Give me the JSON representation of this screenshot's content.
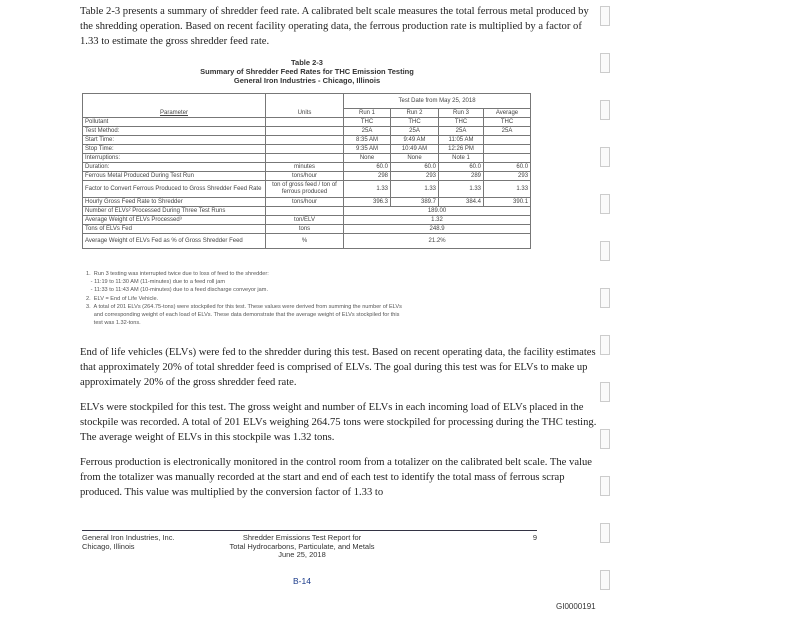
{
  "intro": "Table 2-3 presents a summary of shredder feed rate.  A calibrated belt scale measures the total ferrous metal produced by the shredding operation.  Based on recent facility operating data, the ferrous production rate is multiplied by a factor of 1.33 to estimate the gross shredder feed rate.",
  "caption": {
    "number": "Table 2-3",
    "title": "Summary of Shredder Feed Rates for THC Emission Testing",
    "subtitle": "General Iron Industries - Chicago, Illinois"
  },
  "table": {
    "h_param": "Parameter",
    "h_units": "Units",
    "h_group": "Test Date from May 25, 2018",
    "h_runs": [
      "Run 1",
      "Run 2",
      "Run 3",
      "Average"
    ],
    "rows": [
      {
        "p": "Pollutant",
        "u": "",
        "v": [
          "THC",
          "THC",
          "THC",
          "THC"
        ]
      },
      {
        "p": "Test Method:",
        "u": "",
        "v": [
          "25A",
          "25A",
          "25A",
          "25A"
        ]
      },
      {
        "p": "Start Time:",
        "u": "",
        "v": [
          "8:35 AM",
          "9:49 AM",
          "11:05 AM",
          ""
        ]
      },
      {
        "p": "Stop Time:",
        "u": "",
        "v": [
          "9:35 AM",
          "10:49 AM",
          "12:26 PM",
          ""
        ]
      },
      {
        "p": "Interruptions:",
        "u": "",
        "v": [
          "None",
          "None",
          "Note 1",
          ""
        ]
      },
      {
        "p": "Duration:",
        "u": "minutes",
        "v": [
          "60.0",
          "60.0",
          "60.0",
          "60.0"
        ]
      },
      {
        "p": "Ferrous Metal Produced During Test Run",
        "u": "tons/hour",
        "v": [
          "298",
          "293",
          "289",
          "293"
        ]
      },
      {
        "p": "Factor to Convert Ferrous Produced to Gross Shredder Feed Rate",
        "u": "ton of gross feed / ton of ferrous produced",
        "v": [
          "1.33",
          "1.33",
          "1.33",
          "1.33"
        ]
      },
      {
        "p": "Hourly Gross Feed Rate to Shredder",
        "u": "tons/hour",
        "v": [
          "396.3",
          "389.7",
          "384.4",
          "390.1"
        ]
      }
    ],
    "merged": [
      {
        "p": "Number of ELVs² Processed During Three Test Runs",
        "u": "",
        "v": "189.00"
      },
      {
        "p": "Average Weight of ELVs Processed³",
        "u": "ton/ELV",
        "v": "1.32"
      },
      {
        "p": "Tons of ELVs Fed",
        "u": "tons",
        "v": "248.9"
      },
      {
        "p": "Average Weight of ELVs Fed as % of Gross Shredder Feed",
        "u": "%",
        "v": "21.2%"
      }
    ]
  },
  "notes": [
    "1.  Run 3 testing was interrupted twice due to loss of feed to the shredder:",
    "   - 11:19 to 11:30 AM (11-minutes) due to a feed roll jam",
    "   - 11:33 to 11:43 AM (10-minutes) due to a feed discharge conveyor jam.",
    "2.  ELV = End of Life Vehicle.",
    "3.  A total of 201 ELVs (264.75-tons) were stockpiled for this test. These values were derived from summing the number of ELVs",
    "     and corresponding weight of each load of ELVs. These data demonstrate that the average weight of ELVs stockpiled for this",
    "     test was 1.32-tons."
  ],
  "paragraphs": [
    "End of life vehicles (ELVs) were fed to the shredder during this test.  Based on recent operating data, the facility estimates that approximately 20% of total shredder feed is comprised of ELVs.  The goal during this test was for ELVs to make up approximately 20% of the gross shredder feed rate.",
    "ELVs were stockpiled for this test.  The gross weight and number of ELVs in each incoming load of ELVs placed in the stockpile was recorded.  A total of 201 ELVs weighing 264.75 tons were stockpiled for processing during the THC testing.  The average weight of ELVs in this stockpile was 1.32 tons.",
    "Ferrous production is electronically monitored in the control room from a totalizer on the calibrated belt scale.  The value from the totalizer was manually recorded at the start and end of each test to identify the total mass of ferrous scrap produced.  This value was multiplied by the conversion factor of 1.33 to"
  ],
  "footer": {
    "company": "General Iron Industries, Inc.",
    "city": "Chicago, Illinois",
    "report1": "Shredder Emissions Test Report for",
    "report2": "Total Hydrocarbons, Particulate, and Metals",
    "date": "June 25, 2018",
    "page": "9",
    "exhibit": "B-14",
    "bates": "GI0000191"
  }
}
